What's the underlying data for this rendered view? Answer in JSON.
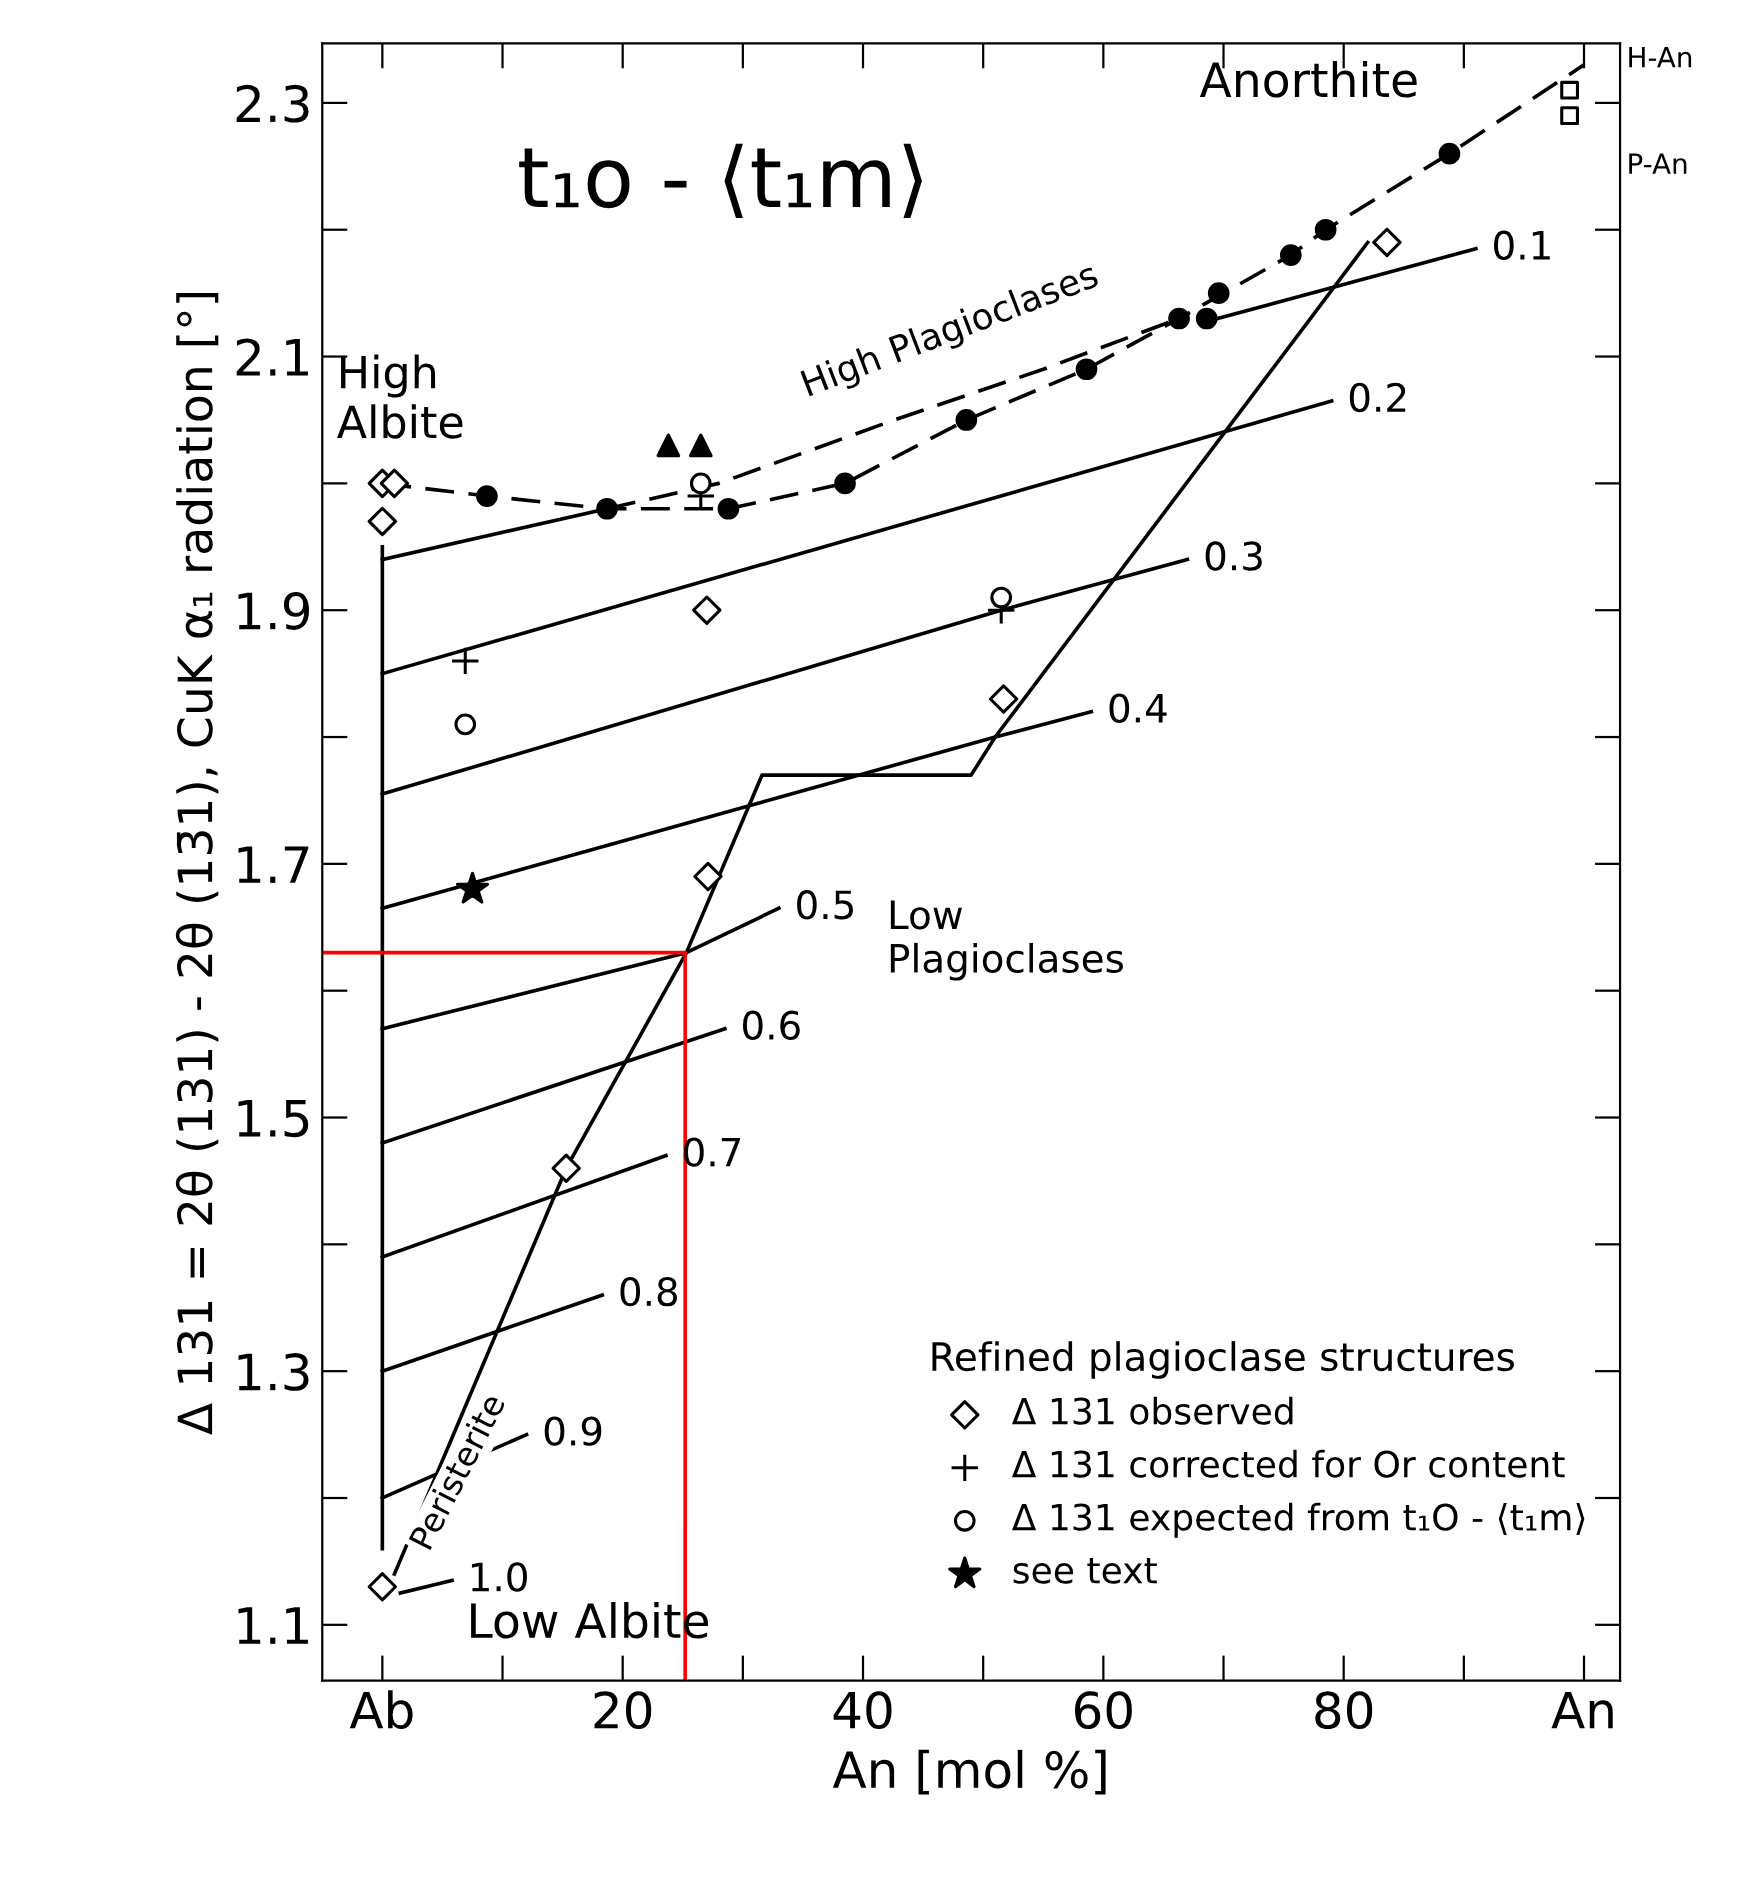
{
  "chart_data": {
    "type": "scatter",
    "title": "t₁o - ⟨t₁m⟩",
    "xlabel": "An [mol %]",
    "ylabel": "Δ 131 = 2θ (131) - 2θ (13̄1), CuK α₁ radiation [°]",
    "legend_title": "Refined plagioclase structures",
    "legend": "bottom right",
    "grid": false,
    "xlim": [
      -5,
      103
    ],
    "ylim": [
      1.056,
      2.347
    ],
    "xticks": [
      {
        "value": 0,
        "label": "Ab"
      },
      {
        "value": 10,
        "label": null
      },
      20,
      {
        "value": 30,
        "label": null
      },
      40,
      {
        "value": 50,
        "label": null
      },
      60,
      {
        "value": 70,
        "label": null
      },
      80,
      {
        "value": 90,
        "label": null
      },
      {
        "value": 100,
        "label": "An"
      }
    ],
    "yticks": [
      {
        "value": 1.1,
        "label": "1.1"
      },
      {
        "value": 1.2,
        "label": null
      },
      1.3,
      {
        "value": 1.4,
        "label": null
      },
      1.5,
      {
        "value": 1.6,
        "label": null
      },
      1.7,
      {
        "value": 1.8,
        "label": null
      },
      1.9,
      {
        "value": 2.0,
        "label": null
      },
      2.1,
      {
        "value": 2.2,
        "label": null
      },
      2.3
    ],
    "series": [
      {
        "type": "line",
        "color": "#000000",
        "line_style": "solid",
        "x": [
          0,
          0
        ],
        "values": [
          1.95,
          1.16
        ]
      },
      {
        "type": "line",
        "color": "#000000",
        "line_style": "dashed",
        "x": [
          0,
          8.7,
          18.7,
          28.8,
          38.5,
          48.6,
          58.6,
          66.3,
          75.6,
          78.5,
          88.8,
          100
        ],
        "values": [
          2.0,
          1.99,
          1.98,
          1.98,
          2.0,
          2.05,
          2.09,
          2.13,
          2.18,
          2.2,
          2.26,
          2.33
        ]
      },
      {
        "type": "line",
        "color": "#000000",
        "line_style": "dashed",
        "x": [
          18.7,
          28,
          42.6,
          55,
          66.3
        ],
        "values": [
          1.98,
          2.0,
          2.05,
          2.09,
          2.13
        ]
      },
      {
        "type": "line",
        "color": "#000000",
        "line_style": "solid",
        "x": [
          1,
          15.3,
          25.3,
          31.6,
          49,
          51,
          82
        ],
        "values": [
          1.14,
          1.46,
          1.63,
          1.77,
          1.77,
          1.8,
          2.19
        ]
      },
      {
        "type": "line",
        "color": "#000000",
        "line_style": "solid",
        "x": [
          0,
          18.7,
          null,
          69.5,
          91
        ],
        "values": [
          1.94,
          1.98,
          null,
          2.13,
          2.185
        ]
      },
      {
        "type": "line",
        "color": "#000000",
        "line_style": "solid",
        "x": [
          0,
          79
        ],
        "values": [
          1.85,
          2.065
        ]
      },
      {
        "type": "line",
        "color": "#000000",
        "line_style": "solid",
        "x": [
          0,
          51.5,
          67
        ],
        "values": [
          1.755,
          1.9,
          1.94
        ]
      },
      {
        "type": "line",
        "color": "#000000",
        "line_style": "solid",
        "x": [
          0,
          51,
          59
        ],
        "values": [
          1.665,
          1.8,
          1.82
        ]
      },
      {
        "type": "line",
        "color": "#000000",
        "line_style": "solid",
        "x": [
          0,
          25.3,
          33
        ],
        "values": [
          1.57,
          1.63,
          1.665
        ]
      },
      {
        "type": "line",
        "color": "#000000",
        "line_style": "solid",
        "x": [
          0,
          28.5
        ],
        "values": [
          1.48,
          1.57
        ]
      },
      {
        "type": "line",
        "color": "#000000",
        "line_style": "solid",
        "x": [
          0,
          23.6
        ],
        "values": [
          1.39,
          1.47
        ]
      },
      {
        "type": "line",
        "color": "#000000",
        "line_style": "solid",
        "x": [
          0,
          18.3
        ],
        "values": [
          1.3,
          1.36
        ]
      },
      {
        "type": "line",
        "color": "#000000",
        "line_style": "solid",
        "x": [
          0,
          12
        ],
        "values": [
          1.2,
          1.25
        ]
      },
      {
        "type": "line",
        "color": "#000000",
        "line_style": "solid",
        "x": [
          1.5,
          5.8
        ],
        "values": [
          1.125,
          1.135
        ]
      },
      {
        "type": "line",
        "color": "#ff0000",
        "line_style": "solid",
        "x": [
          -5,
          25.2,
          25.2
        ],
        "values": [
          1.63,
          1.63,
          1.056
        ]
      },
      {
        "color": "#000000",
        "marker": "circle",
        "x": [
          8.7,
          18.7,
          28.8,
          38.5,
          48.6,
          58.6,
          66.3,
          68.6,
          69.6,
          75.6,
          78.5,
          88.8
        ],
        "values": [
          1.99,
          1.98,
          1.98,
          2.0,
          2.05,
          2.09,
          2.13,
          2.13,
          2.15,
          2.18,
          2.2,
          2.26
        ]
      },
      {
        "color": "#000000",
        "marker": "triangle",
        "x": [
          23.8,
          26.5
        ],
        "values": [
          2.03,
          2.03
        ]
      },
      {
        "color": "#000000",
        "marker": "square",
        "x": [
          98.8,
          98.8
        ],
        "values": [
          2.31,
          2.29
        ]
      },
      {
        "name": "Δ 131 observed",
        "color": "#000000",
        "marker": "diamond",
        "x": [
          0,
          1,
          0,
          27,
          51.7,
          27.1,
          15.3,
          83.6,
          0
        ],
        "values": [
          2.0,
          2.0,
          1.97,
          1.9,
          1.83,
          1.69,
          1.46,
          2.19,
          1.13
        ]
      },
      {
        "name": "Δ 131 corrected for Or content",
        "color": "#000000",
        "marker": "cross",
        "x": [
          6.9,
          26.5,
          51.5
        ],
        "values": [
          1.86,
          1.99,
          1.9
        ]
      },
      {
        "name": "Δ 131 expected from t₁O - ⟨t₁m⟩",
        "color": "#000000",
        "marker": "circle",
        "x": [
          6.9,
          26.5,
          51.5
        ],
        "values": [
          1.81,
          2.0,
          1.91
        ]
      },
      {
        "name": "see text",
        "color": "#000000",
        "marker": "star",
        "x": [
          7.5
        ],
        "values": [
          1.68
        ]
      }
    ],
    "annotations": [
      "High\nAlbite",
      "Anorthite",
      "High Plagioclases",
      "Low\nPlagioclases",
      "Low Albite",
      "Peristerite",
      "H-An",
      "P-An",
      "0.1",
      "0.2",
      "0.3",
      "0.4",
      "0.5",
      "0.6",
      "0.7",
      "0.8",
      "0.9",
      "1.0"
    ]
  }
}
